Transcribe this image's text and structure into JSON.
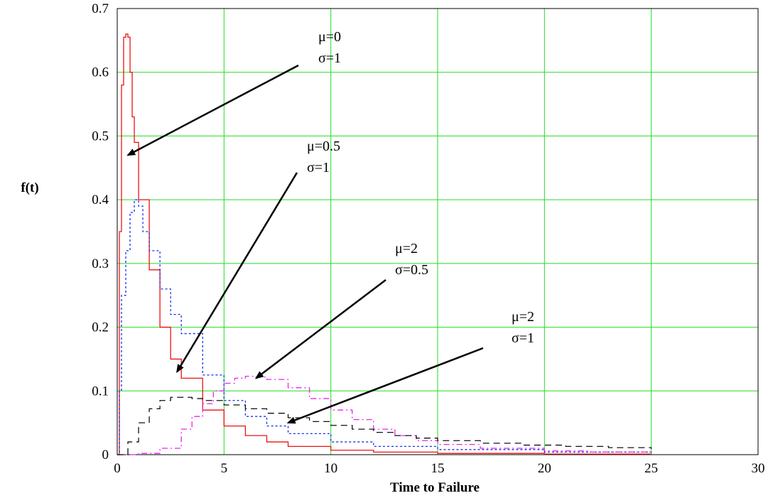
{
  "chart_data": {
    "type": "line",
    "title": "",
    "xlabel": "Time to Failure",
    "ylabel": "f(t)",
    "xlim": [
      0,
      30
    ],
    "ylim": [
      0,
      0.7
    ],
    "xticks": [
      "0",
      "5",
      "10",
      "15",
      "20",
      "25",
      "30"
    ],
    "yticks": [
      "0",
      "0.1",
      "0.2",
      "0.3",
      "0.4",
      "0.5",
      "0.6",
      "0.7"
    ],
    "grid": true,
    "grid_color": "#22dd22",
    "legend": "none",
    "series": [
      {
        "color": "#ee1111",
        "style": "solid",
        "points": [
          [
            0,
            0
          ],
          [
            0.1,
            0.35
          ],
          [
            0.2,
            0.58
          ],
          [
            0.3,
            0.655
          ],
          [
            0.4,
            0.66
          ],
          [
            0.5,
            0.655
          ],
          [
            0.6,
            0.6
          ],
          [
            0.7,
            0.53
          ],
          [
            0.8,
            0.49
          ],
          [
            1,
            0.4
          ],
          [
            1.5,
            0.29
          ],
          [
            2,
            0.2
          ],
          [
            2.5,
            0.15
          ],
          [
            3,
            0.12
          ],
          [
            4,
            0.07
          ],
          [
            5,
            0.045
          ],
          [
            6,
            0.03
          ],
          [
            7,
            0.02
          ],
          [
            8,
            0.013
          ],
          [
            10,
            0.007
          ],
          [
            12,
            0.004
          ],
          [
            15,
            0.002
          ],
          [
            20,
            0.001
          ],
          [
            25,
            0
          ]
        ]
      },
      {
        "color": "#1133ee",
        "style": "dotted",
        "points": [
          [
            0,
            0
          ],
          [
            0.1,
            0.1
          ],
          [
            0.2,
            0.25
          ],
          [
            0.4,
            0.32
          ],
          [
            0.6,
            0.38
          ],
          [
            0.8,
            0.4
          ],
          [
            1,
            0.39
          ],
          [
            1.2,
            0.35
          ],
          [
            1.5,
            0.32
          ],
          [
            2,
            0.26
          ],
          [
            2.5,
            0.22
          ],
          [
            3,
            0.19
          ],
          [
            4,
            0.125
          ],
          [
            5,
            0.085
          ],
          [
            6,
            0.06
          ],
          [
            7,
            0.045
          ],
          [
            8,
            0.033
          ],
          [
            10,
            0.02
          ],
          [
            12,
            0.013
          ],
          [
            15,
            0.008
          ],
          [
            20,
            0.004
          ],
          [
            25,
            0.003
          ]
        ]
      },
      {
        "color": "#ee22ee",
        "style": "dashdot",
        "points": [
          [
            0,
            0
          ],
          [
            1,
            0.002
          ],
          [
            2,
            0.01
          ],
          [
            3,
            0.04
          ],
          [
            3.5,
            0.06
          ],
          [
            4,
            0.08
          ],
          [
            4.5,
            0.1
          ],
          [
            5,
            0.112
          ],
          [
            5.5,
            0.12
          ],
          [
            6,
            0.123
          ],
          [
            6.5,
            0.122
          ],
          [
            7,
            0.118
          ],
          [
            8,
            0.105
          ],
          [
            9,
            0.088
          ],
          [
            10,
            0.07
          ],
          [
            11,
            0.055
          ],
          [
            12,
            0.04
          ],
          [
            13,
            0.03
          ],
          [
            14,
            0.022
          ],
          [
            15,
            0.016
          ],
          [
            17,
            0.01
          ],
          [
            20,
            0.006
          ],
          [
            22,
            0.004
          ],
          [
            25,
            0.003
          ]
        ]
      },
      {
        "color": "#111111",
        "style": "dashed",
        "points": [
          [
            0,
            0
          ],
          [
            0.5,
            0.02
          ],
          [
            1,
            0.05
          ],
          [
            1.5,
            0.072
          ],
          [
            2,
            0.085
          ],
          [
            2.5,
            0.09
          ],
          [
            3,
            0.09
          ],
          [
            3.5,
            0.088
          ],
          [
            4,
            0.085
          ],
          [
            5,
            0.078
          ],
          [
            6,
            0.072
          ],
          [
            7,
            0.065
          ],
          [
            8,
            0.058
          ],
          [
            9,
            0.052
          ],
          [
            10,
            0.046
          ],
          [
            11,
            0.04
          ],
          [
            12,
            0.035
          ],
          [
            13,
            0.03
          ],
          [
            14,
            0.026
          ],
          [
            15,
            0.022
          ],
          [
            17,
            0.018
          ],
          [
            19,
            0.015
          ],
          [
            21,
            0.013
          ],
          [
            23,
            0.011
          ],
          [
            25,
            0.009
          ]
        ]
      }
    ],
    "annotations": [
      {
        "lines": [
          "μ=0",
          "σ=1"
        ],
        "arrow_to": [
          0.5,
          0.47
        ]
      },
      {
        "lines": [
          "μ=0.5",
          "σ=1"
        ],
        "arrow_to": [
          2.8,
          0.13
        ]
      },
      {
        "lines": [
          "μ=2",
          "σ=0.5"
        ],
        "arrow_to": [
          6.5,
          0.12
        ]
      },
      {
        "lines": [
          "μ=2",
          "σ=1"
        ],
        "arrow_to": [
          8.0,
          0.05
        ]
      }
    ]
  }
}
